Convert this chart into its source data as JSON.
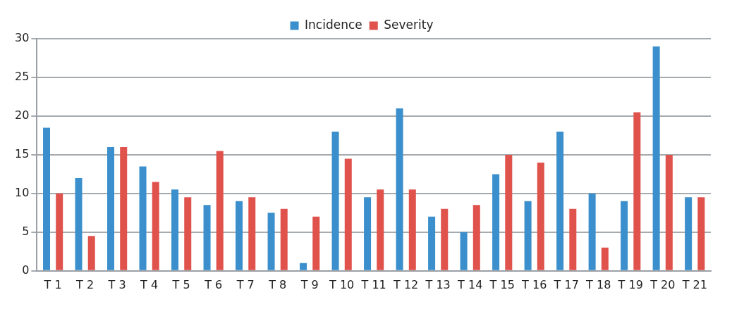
{
  "chart_data": {
    "type": "bar",
    "categories": [
      "T 1",
      "T 2",
      "T 3",
      "T 4",
      "T 5",
      "T 6",
      "T 7",
      "T 8",
      "T 9",
      "T 10",
      "T 11",
      "T 12",
      "T 13",
      "T 14",
      "T 15",
      "T 16",
      "T 17",
      "T 18",
      "T 19",
      "T 20",
      "T 21"
    ],
    "series": [
      {
        "name": "Incidence",
        "color": "#3a8fcc",
        "values": [
          18.5,
          12,
          16,
          13.5,
          10.5,
          8.5,
          9,
          7.5,
          1,
          18,
          9.5,
          21,
          7,
          5,
          12.5,
          9,
          18,
          10,
          9,
          29,
          9.5
        ]
      },
      {
        "name": "Severity",
        "color": "#e0524c",
        "values": [
          10,
          4.5,
          16,
          11.5,
          9.5,
          15.5,
          9.5,
          8,
          7,
          14.5,
          10.5,
          10.5,
          8,
          8.5,
          15,
          14,
          8,
          3,
          20.5,
          15,
          9.5
        ]
      }
    ],
    "ylim": [
      0,
      30
    ],
    "yticks": [
      0,
      5,
      10,
      15,
      20,
      25,
      30
    ],
    "grid": "y",
    "legend": "top"
  }
}
